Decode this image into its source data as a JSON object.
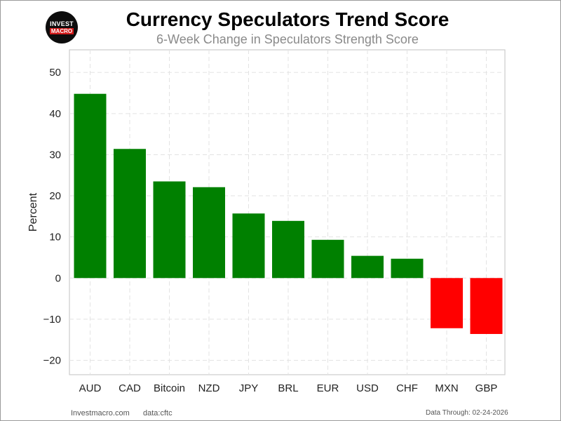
{
  "header": {
    "title": "Currency Speculators Trend Score",
    "subtitle": "6-Week Change in Speculators Strength Score"
  },
  "logo": {
    "top": "INVEST",
    "bottom": "MACRO"
  },
  "chart_data": {
    "type": "bar",
    "title": "Currency Speculators Trend Score",
    "subtitle": "6-Week Change in Speculators Strength Score",
    "xlabel": "",
    "ylabel": "Percent",
    "categories": [
      "AUD",
      "CAD",
      "Bitcoin",
      "NZD",
      "JPY",
      "BRL",
      "EUR",
      "USD",
      "CHF",
      "MXN",
      "GBP"
    ],
    "values": [
      44.8,
      31.4,
      23.5,
      22.1,
      15.7,
      13.9,
      9.3,
      5.4,
      4.7,
      -12.2,
      -13.6
    ],
    "ylim": [
      -23.5,
      55.5
    ],
    "yticks": [
      -20,
      -10,
      0,
      10,
      20,
      30,
      40,
      50
    ],
    "ytick_labels": [
      "−20",
      "−10",
      "0",
      "10",
      "20",
      "30",
      "40",
      "50"
    ],
    "positive_color": "#008000",
    "negative_color": "#ff0000",
    "grid": true,
    "legend": "none"
  },
  "footer": {
    "site": "Investmacro.com",
    "source": "data:cftc",
    "data_through": "Data Through: 02-24-2026"
  }
}
